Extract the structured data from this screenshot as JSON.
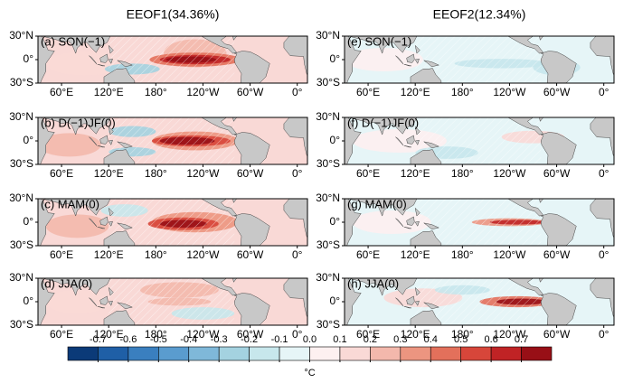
{
  "columns": [
    {
      "title": "EEOF1(34.36%)",
      "panels": [
        {
          "label": "(a) SON(−1)"
        },
        {
          "label": "(b) D(−1)JF(0)"
        },
        {
          "label": "(c) MAM(0)"
        },
        {
          "label": "(d) JJA(0)"
        }
      ]
    },
    {
      "title": "EEOF2(12.34%)",
      "panels": [
        {
          "label": "(e) SON(−1)"
        },
        {
          "label": "(f) D(−1)JF(0)"
        },
        {
          "label": "(g) MAM(0)"
        },
        {
          "label": "(h) JJA(0)"
        }
      ]
    }
  ],
  "lat_labels": [
    "30°N",
    "0°",
    "30°S"
  ],
  "lon_labels": [
    "60°E",
    "120°E",
    "180°",
    "120°W",
    "60°W",
    "0°"
  ],
  "colorbar": {
    "range": [
      -0.8,
      0.8
    ],
    "ticks": [
      -0.7,
      -0.6,
      -0.5,
      -0.4,
      -0.3,
      -0.2,
      -0.1,
      {
        "value": 0,
        "label": "0.0"
      },
      0.1,
      0.2,
      0.3,
      0.4,
      0.5,
      0.6,
      0.7
    ],
    "colors": [
      "#0b3a78",
      "#1f5fa6",
      "#3a7fbf",
      "#5a9ccf",
      "#7fb8d9",
      "#a4d2e0",
      "#c7e7ec",
      "#e6f5f7",
      "#fdf0f0",
      "#f9d9d6",
      "#f3b8ac",
      "#ec9580",
      "#e3705b",
      "#d7463a",
      "#c02325",
      "#980f16"
    ],
    "unit": "°C"
  }
}
